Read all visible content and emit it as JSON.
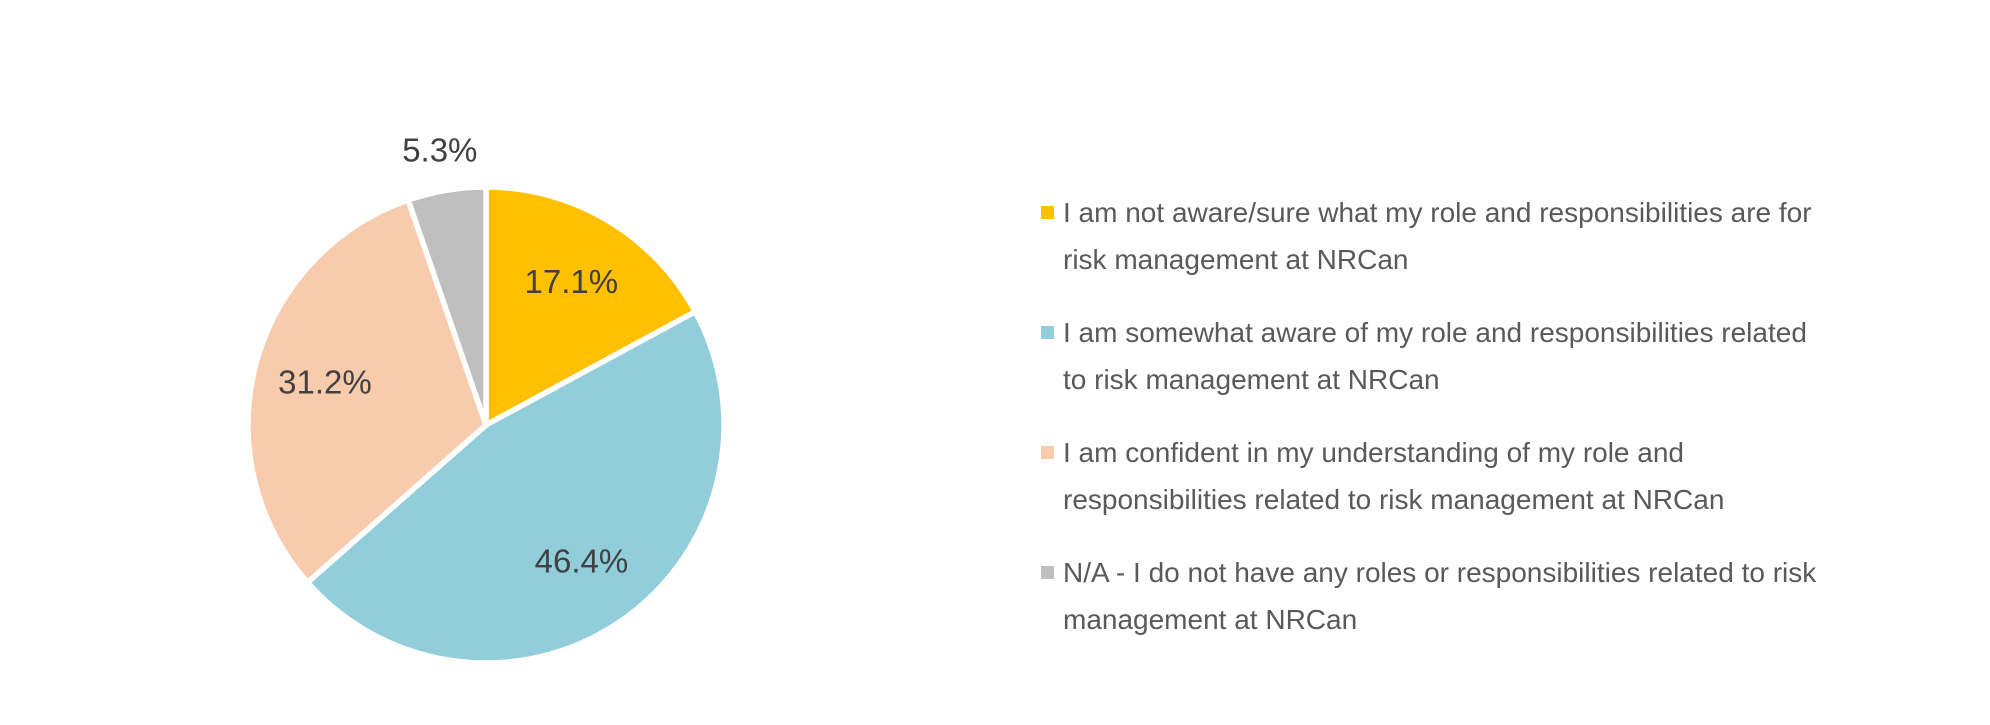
{
  "page": {
    "background_color": "#FFFFFF"
  },
  "chart_data": {
    "type": "pie",
    "categories": [
      "I am not aware/sure what my role and responsibilities are for risk management at NRCan",
      "I am somewhat aware of my role and responsibilities related to risk management at NRCan",
      "I am confident in my understanding of my role and responsibilities related to risk management at NRCan",
      "N/A - I do not have any roles or responsibilities related to risk management at NRCan"
    ],
    "values": [
      17.1,
      46.4,
      31.2,
      5.3
    ],
    "slice_labels": [
      "17.1%",
      "46.4%",
      "31.2%",
      "5.3%"
    ],
    "colors": [
      "#FFC000",
      "#92CDDC",
      "#F8CBAD",
      "#BFBFBF"
    ],
    "start_angle_deg": 0,
    "direction": "clockwise",
    "legend_position": "right",
    "slice_border_color": "#FFFFFF",
    "label_color": "#404040",
    "legend_text_color": "#595959"
  },
  "legend": {
    "items": [
      {
        "lines": [
          "I am not aware/sure what my role and responsibilities are for",
          "risk management at NRCan"
        ]
      },
      {
        "lines": [
          "I am somewhat aware of my role and responsibilities related",
          "to risk management at NRCan"
        ]
      },
      {
        "lines": [
          "I am confident in my understanding of my role and",
          "responsibilities related to risk management at NRCan"
        ]
      },
      {
        "lines": [
          "N/A - I do not have any roles or responsibilities related to risk",
          "management at NRCan"
        ]
      }
    ]
  }
}
